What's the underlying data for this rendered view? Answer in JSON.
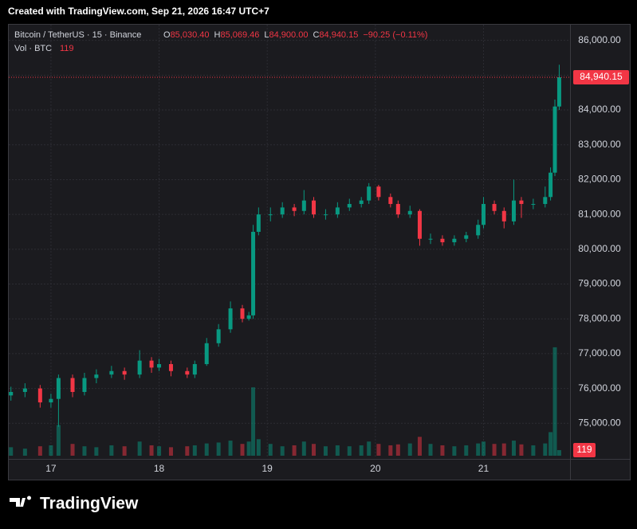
{
  "header": {
    "created": "Created with TradingView.com, Sep 21, 2026 16:47 UTC+7"
  },
  "chart_data": {
    "type": "candlestick",
    "symbol": "Bitcoin / TetherUS · 15 · Binance",
    "ohlc_legend": [
      {
        "key": "O",
        "value": "85,030.40"
      },
      {
        "key": "H",
        "value": "85,069.46"
      },
      {
        "key": "L",
        "value": "84,900.00"
      },
      {
        "key": "C"
      }
    ],
    "change": "−90.25 (−0.11%)",
    "volume_title": "Vol · BTC",
    "up_color": "#089981",
    "down_color": "#f23645",
    "x": [
      16.63,
      16.76,
      16.9,
      17.0,
      17.07,
      17.2,
      17.31,
      17.42,
      17.56,
      17.68,
      17.82,
      17.93,
      18.0,
      18.11,
      18.26,
      18.33,
      18.44,
      18.55,
      18.66,
      18.77,
      18.83,
      18.87,
      18.92,
      19.03,
      19.14,
      19.25,
      19.34,
      19.43,
      19.54,
      19.65,
      19.76,
      19.87,
      19.94,
      20.03,
      20.14,
      20.21,
      20.32,
      20.41,
      20.51,
      20.62,
      20.73,
      20.84,
      20.95,
      21.0,
      21.1,
      21.19,
      21.28,
      21.35,
      21.46,
      21.57,
      21.62,
      21.66,
      21.7
    ],
    "open": [
      75800,
      75900,
      76000,
      75600,
      75700,
      76300,
      75900,
      76300,
      76400,
      76500,
      76400,
      76800,
      76600,
      76700,
      76500,
      76400,
      76700,
      77300,
      77700,
      78300,
      78000,
      78100,
      80500,
      81000,
      81000,
      81200,
      81100,
      81400,
      81000,
      81000,
      81200,
      81300,
      81400,
      81800,
      81500,
      81300,
      81000,
      81100,
      80300,
      80300,
      80200,
      80300,
      80400,
      80700,
      81300,
      81100,
      80800,
      81400,
      81300,
      81300,
      81500,
      82200,
      84100
    ],
    "high": [
      76050,
      76150,
      76100,
      75850,
      76400,
      76400,
      76450,
      76550,
      76650,
      76600,
      77100,
      76900,
      76850,
      76800,
      76600,
      76800,
      77450,
      77850,
      78500,
      78400,
      78200,
      80700,
      81200,
      81200,
      81350,
      81300,
      81700,
      81500,
      81150,
      81350,
      81450,
      81500,
      81900,
      81850,
      81600,
      81400,
      81250,
      81150,
      80450,
      80400,
      80400,
      80500,
      80850,
      81500,
      81400,
      81200,
      82000,
      81500,
      81450,
      81800,
      82350,
      84300,
      85300
    ],
    "low": [
      75650,
      75750,
      75450,
      75450,
      74900,
      75750,
      75800,
      76150,
      76300,
      76250,
      76300,
      76450,
      76500,
      76350,
      76300,
      76300,
      76650,
      77200,
      77600,
      77900,
      77950,
      78000,
      80400,
      80800,
      80900,
      80950,
      81000,
      80900,
      80850,
      80900,
      81100,
      81200,
      81300,
      81400,
      81200,
      80900,
      80900,
      80100,
      80150,
      80100,
      80100,
      80200,
      80300,
      80600,
      81000,
      80600,
      80700,
      80900,
      81150,
      81200,
      81400,
      82100,
      84000
    ],
    "close": [
      75900,
      76000,
      75600,
      75700,
      76300,
      75900,
      76300,
      76400,
      76500,
      76400,
      76800,
      76600,
      76700,
      76500,
      76400,
      76700,
      77300,
      77700,
      78300,
      78000,
      78100,
      80500,
      81000,
      81000,
      81200,
      81100,
      81400,
      81000,
      81000,
      81200,
      81300,
      81400,
      81800,
      81500,
      81300,
      81000,
      81100,
      80300,
      80300,
      80200,
      80300,
      80400,
      80700,
      81300,
      81100,
      80800,
      81400,
      81300,
      81300,
      81500,
      82200,
      84100,
      84940.15
    ],
    "volume": [
      180,
      150,
      200,
      220,
      650,
      250,
      200,
      180,
      220,
      200,
      300,
      220,
      200,
      180,
      200,
      220,
      260,
      280,
      320,
      250,
      300,
      1450,
      350,
      250,
      200,
      220,
      300,
      250,
      200,
      220,
      200,
      220,
      300,
      250,
      220,
      240,
      260,
      400,
      250,
      220,
      200,
      220,
      260,
      300,
      250,
      260,
      320,
      240,
      220,
      260,
      500,
      2300,
      119
    ],
    "last_label": {
      "value": 84940.15,
      "label": "84,940.15"
    },
    "xlim": [
      16.61,
      21.8
    ],
    "ylim": [
      74000,
      86450
    ],
    "vlim": [
      0,
      2400
    ],
    "xticks": [
      17,
      18,
      19,
      20,
      21
    ],
    "yticks": [
      {
        "value": 75000,
        "label": "75,000.00"
      },
      {
        "value": 76000,
        "label": "76,000.00"
      },
      {
        "value": 77000,
        "label": "77,000.00"
      },
      {
        "value": 78000,
        "label": "78,000.00"
      },
      {
        "value": 79000,
        "label": "79,000.00"
      },
      {
        "value": 80000,
        "label": "80,000.00"
      },
      {
        "value": 81000,
        "label": "81,000.00"
      },
      {
        "value": 82000,
        "label": "82,000.00"
      },
      {
        "value": 83000,
        "label": "83,000.00"
      },
      {
        "value": 84000,
        "label": "84,000.00"
      },
      {
        "value": 85000,
        "label": "85,000.00"
      },
      {
        "value": 86000,
        "label": "86,000.00"
      }
    ],
    "grid": true
  },
  "footer": {
    "logo": "TradingView"
  }
}
